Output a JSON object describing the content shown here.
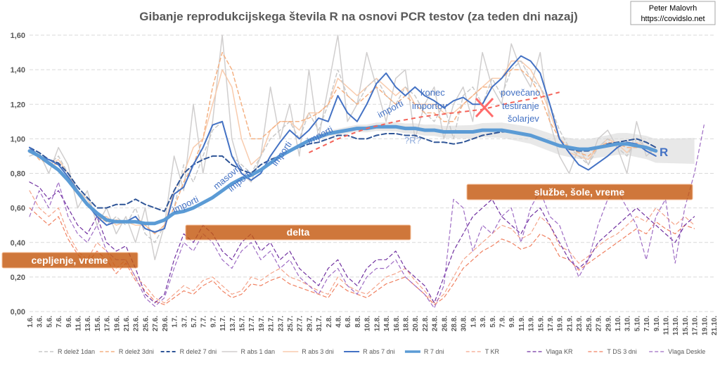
{
  "credit": {
    "line1": "Peter Malovrh",
    "line2": "https://covidslo.net"
  },
  "chart_data": {
    "type": "line",
    "title": "Gibanje reprodukcijskega števila R na osnovi PCR testov (za teden dni nazaj)",
    "ylim": [
      0.0,
      1.6
    ],
    "yticks": [
      "0,00",
      "0,20",
      "0,40",
      "0,60",
      "0,80",
      "1,00",
      "1,20",
      "1,40",
      "1,60"
    ],
    "ytick_values": [
      0.0,
      0.2,
      0.4,
      0.6,
      0.8,
      1.0,
      1.2,
      1.4,
      1.6
    ],
    "grid": true,
    "legend_position": "bottom",
    "categories": [
      "1.6.",
      "3.6.",
      "5.6.",
      "7.6.",
      "9.6.",
      "11.6.",
      "13.6.",
      "15.6.",
      "17.6.",
      "19.6.",
      "21.6.",
      "23.6.",
      "25.6.",
      "27.6.",
      "29.6.",
      "1.7.",
      "3.7.",
      "5.7.",
      "7.7.",
      "9.7.",
      "11.7.",
      "13.7.",
      "15.7.",
      "17.7.",
      "19.7.",
      "21.7.",
      "23.7.",
      "25.7.",
      "27.7.",
      "29.7.",
      "31.7.",
      "2.8.",
      "4.8.",
      "6.8.",
      "8.8.",
      "10.8.",
      "12.8.",
      "14.8.",
      "16.8.",
      "18.8.",
      "20.8.",
      "22.8.",
      "24.8.",
      "26.8.",
      "28.8.",
      "30.8.",
      "1.9.",
      "3.9.",
      "5.9.",
      "7.9.",
      "9.9.",
      "11.9.",
      "13.9.",
      "15.9.",
      "17.9.",
      "19.9.",
      "21.9.",
      "23.9.",
      "25.9.",
      "27.9.",
      "29.9.",
      "1.10.",
      "3.10.",
      "5.10.",
      "7.10.",
      "9.10.",
      "11.10.",
      "13.10.",
      "15.10.",
      "17.10.",
      "19.10.",
      "21.10."
    ],
    "series": [
      {
        "name": "R delež 1dan",
        "color": "#c9c9c9",
        "style": "dash",
        "width": 1.5,
        "values": [
          0.95,
          0.9,
          0.85,
          0.9,
          0.8,
          0.7,
          0.65,
          0.55,
          0.5,
          0.55,
          0.5,
          0.6,
          0.45,
          0.4,
          0.5,
          0.6,
          0.85,
          0.75,
          0.9,
          1.05,
          1.1,
          0.9,
          0.85,
          0.8,
          0.9,
          1.0,
          1.05,
          1.1,
          1.0,
          1.15,
          1.05,
          1.2,
          1.4,
          1.25,
          1.2,
          1.3,
          1.35,
          1.25,
          1.2,
          1.3,
          1.25,
          1.15,
          1.1,
          1.2,
          1.0,
          1.25,
          1.3,
          1.2,
          1.35,
          1.25,
          1.4,
          1.45,
          1.35,
          1.3,
          1.2,
          1.05,
          0.95,
          0.9,
          0.85,
          0.95,
          1.0,
          0.95,
          0.9,
          1.0,
          0.95,
          0.9,
          null,
          null,
          null,
          null,
          null,
          null
        ]
      },
      {
        "name": "R delež 3dni",
        "color": "#f4b183",
        "style": "dash",
        "width": 1.5,
        "values": [
          0.95,
          0.88,
          0.86,
          0.85,
          0.78,
          0.7,
          0.62,
          0.55,
          0.52,
          0.53,
          0.52,
          0.55,
          0.5,
          0.45,
          0.5,
          0.6,
          0.75,
          0.85,
          1.0,
          1.3,
          1.5,
          1.4,
          1.2,
          1.0,
          1.0,
          1.05,
          1.1,
          1.1,
          1.1,
          1.12,
          1.15,
          1.2,
          1.3,
          1.25,
          1.2,
          1.25,
          1.3,
          1.25,
          1.2,
          1.25,
          1.2,
          1.15,
          1.15,
          1.1,
          1.1,
          1.2,
          1.25,
          1.3,
          1.3,
          1.35,
          1.4,
          1.4,
          1.35,
          1.25,
          1.1,
          1.0,
          0.95,
          0.92,
          0.9,
          0.95,
          0.98,
          0.97,
          0.95,
          0.95,
          0.95,
          0.93,
          null,
          null,
          null,
          null,
          null,
          null
        ]
      },
      {
        "name": "R delež 7 dni",
        "color": "#2f5597",
        "style": "dash",
        "width": 2,
        "values": [
          0.95,
          0.92,
          0.88,
          0.86,
          0.8,
          0.72,
          0.66,
          0.6,
          0.6,
          0.62,
          0.62,
          0.65,
          0.62,
          0.6,
          0.58,
          0.7,
          0.8,
          0.85,
          0.88,
          0.9,
          0.9,
          0.85,
          0.82,
          0.8,
          0.85,
          0.88,
          0.9,
          0.93,
          0.95,
          0.97,
          0.98,
          1.0,
          1.02,
          1.02,
          1.0,
          1.0,
          1.02,
          1.03,
          1.03,
          1.02,
          1.02,
          1.0,
          0.98,
          0.98,
          0.97,
          0.98,
          1.0,
          1.02,
          1.03,
          1.04,
          1.04,
          1.03,
          1.02,
          1.0,
          0.98,
          0.96,
          0.94,
          0.93,
          0.93,
          0.95,
          0.97,
          0.98,
          0.99,
          1.0,
          0.98,
          0.95,
          null,
          null,
          null,
          null,
          null,
          null
        ]
      },
      {
        "name": "R abs 1 dan",
        "color": "#d0cece",
        "style": "solid",
        "width": 1.5,
        "values": [
          0.9,
          0.92,
          0.8,
          0.95,
          0.85,
          0.6,
          0.7,
          0.5,
          0.6,
          0.45,
          0.55,
          0.4,
          0.6,
          0.3,
          0.5,
          0.9,
          0.7,
          1.2,
          0.8,
          1.1,
          1.6,
          1.0,
          0.8,
          0.75,
          0.9,
          1.3,
          1.0,
          1.2,
          0.9,
          1.4,
          1.0,
          1.3,
          1.6,
          1.1,
          1.2,
          1.5,
          1.3,
          1.1,
          1.35,
          1.4,
          1.0,
          1.2,
          1.3,
          1.0,
          1.2,
          1.3,
          1.1,
          1.5,
          1.3,
          1.2,
          1.55,
          1.4,
          1.3,
          1.5,
          1.1,
          0.9,
          0.8,
          0.95,
          0.85,
          1.0,
          1.05,
          0.95,
          0.8,
          1.1,
          0.9,
          0.95,
          null,
          null,
          null,
          null,
          null,
          null
        ]
      },
      {
        "name": "R abs 3 dni",
        "color": "#f8cbad",
        "style": "solid",
        "width": 1.5,
        "values": [
          0.92,
          0.9,
          0.85,
          0.88,
          0.8,
          0.7,
          0.65,
          0.55,
          0.55,
          0.5,
          0.52,
          0.5,
          0.5,
          0.45,
          0.5,
          0.7,
          0.8,
          0.95,
          1.0,
          1.2,
          1.4,
          1.3,
          1.0,
          0.85,
          0.9,
          1.05,
          1.1,
          1.1,
          1.05,
          1.15,
          1.15,
          1.2,
          1.35,
          1.3,
          1.25,
          1.3,
          1.35,
          1.3,
          1.25,
          1.3,
          1.2,
          1.2,
          1.2,
          1.15,
          1.15,
          1.2,
          1.25,
          1.3,
          1.35,
          1.35,
          1.45,
          1.45,
          1.4,
          1.3,
          1.15,
          1.0,
          0.92,
          0.9,
          0.88,
          0.95,
          1.0,
          0.97,
          0.92,
          0.98,
          0.95,
          0.93,
          null,
          null,
          null,
          null,
          null,
          null
        ]
      },
      {
        "name": "R abs 7 dni",
        "color": "#4472c4",
        "style": "solid",
        "width": 2,
        "values": [
          0.95,
          0.9,
          0.88,
          0.85,
          0.78,
          0.7,
          0.62,
          0.55,
          0.5,
          0.52,
          0.52,
          0.55,
          0.48,
          0.46,
          0.48,
          0.68,
          0.72,
          0.85,
          0.95,
          1.08,
          1.1,
          0.9,
          0.8,
          0.76,
          0.8,
          0.9,
          0.98,
          1.05,
          1.0,
          1.05,
          1.12,
          1.1,
          1.25,
          1.15,
          1.1,
          1.2,
          1.32,
          1.38,
          1.3,
          1.25,
          1.3,
          1.25,
          1.22,
          1.18,
          1.22,
          1.24,
          1.2,
          1.2,
          1.3,
          1.35,
          1.42,
          1.48,
          1.45,
          1.38,
          1.2,
          1.0,
          0.92,
          0.85,
          0.82,
          0.86,
          0.9,
          0.95,
          0.98,
          0.97,
          0.93,
          0.9,
          null,
          null,
          null,
          null,
          null,
          null
        ]
      },
      {
        "name": "R 7 dni",
        "color": "#5b9bd5",
        "style": "solid",
        "width": 5,
        "values": [
          0.93,
          0.9,
          0.86,
          0.82,
          0.76,
          0.69,
          0.62,
          0.57,
          0.53,
          0.52,
          0.52,
          0.52,
          0.51,
          0.51,
          0.53,
          0.57,
          0.58,
          0.6,
          0.63,
          0.66,
          0.7,
          0.74,
          0.77,
          0.79,
          0.82,
          0.86,
          0.9,
          0.93,
          0.96,
          0.99,
          1.01,
          1.03,
          1.04,
          1.05,
          1.06,
          1.06,
          1.07,
          1.07,
          1.07,
          1.06,
          1.06,
          1.05,
          1.05,
          1.04,
          1.04,
          1.04,
          1.04,
          1.05,
          1.05,
          1.05,
          1.04,
          1.03,
          1.02,
          1.0,
          0.98,
          0.96,
          0.95,
          0.94,
          0.94,
          0.95,
          0.96,
          0.97,
          0.97,
          0.96,
          0.95,
          0.93,
          null,
          null,
          null,
          null,
          null,
          null
        ]
      },
      {
        "name": "T KR",
        "color": "#f4a48a",
        "style": "dash",
        "width": 1.2,
        "values": [
          0.7,
          0.6,
          0.55,
          0.6,
          0.45,
          0.35,
          0.3,
          0.4,
          0.35,
          0.25,
          0.3,
          0.2,
          0.15,
          0.08,
          0.05,
          0.1,
          0.15,
          0.12,
          0.18,
          0.2,
          0.15,
          0.1,
          0.12,
          0.2,
          0.18,
          0.22,
          0.25,
          0.2,
          0.18,
          0.15,
          0.12,
          0.1,
          0.2,
          0.15,
          0.12,
          0.1,
          0.15,
          0.2,
          0.22,
          0.25,
          0.18,
          0.12,
          0.05,
          0.1,
          0.2,
          0.3,
          0.35,
          0.4,
          0.45,
          0.5,
          0.48,
          0.42,
          0.45,
          0.55,
          0.5,
          0.38,
          0.35,
          0.28,
          0.32,
          0.38,
          0.42,
          0.45,
          0.5,
          0.55,
          0.52,
          0.6,
          0.55,
          0.5,
          0.55,
          0.5,
          null,
          null
        ]
      },
      {
        "name": "Vlaga KR",
        "color": "#7030a0",
        "style": "dash",
        "width": 1.2,
        "values": [
          0.75,
          0.72,
          0.65,
          0.7,
          0.6,
          0.5,
          0.45,
          0.55,
          0.4,
          0.35,
          0.38,
          0.25,
          0.1,
          0.05,
          0.1,
          0.3,
          0.45,
          0.4,
          0.5,
          0.45,
          0.35,
          0.3,
          0.4,
          0.45,
          0.35,
          0.4,
          0.3,
          0.35,
          0.25,
          0.2,
          0.15,
          0.25,
          0.3,
          0.2,
          0.15,
          0.25,
          0.3,
          0.3,
          0.35,
          0.25,
          0.2,
          0.15,
          0.05,
          0.2,
          0.35,
          0.45,
          0.55,
          0.6,
          0.65,
          0.55,
          0.5,
          0.45,
          0.55,
          0.6,
          0.5,
          0.4,
          0.3,
          0.25,
          0.3,
          0.4,
          0.45,
          0.5,
          0.55,
          0.6,
          0.55,
          0.5,
          0.45,
          0.4,
          0.5,
          0.55,
          null,
          null
        ]
      },
      {
        "name": "T DS 3 dni",
        "color": "#f08060",
        "style": "dash",
        "width": 1.2,
        "values": [
          0.6,
          0.55,
          0.5,
          0.55,
          0.42,
          0.33,
          0.28,
          0.35,
          0.3,
          0.22,
          0.28,
          0.18,
          0.12,
          0.06,
          0.04,
          0.08,
          0.12,
          0.1,
          0.15,
          0.18,
          0.12,
          0.08,
          0.1,
          0.16,
          0.15,
          0.18,
          0.2,
          0.16,
          0.14,
          0.12,
          0.1,
          0.08,
          0.16,
          0.12,
          0.1,
          0.08,
          0.12,
          0.16,
          0.18,
          0.2,
          0.15,
          0.1,
          0.04,
          0.08,
          0.16,
          0.25,
          0.3,
          0.35,
          0.38,
          0.42,
          0.4,
          0.36,
          0.38,
          0.45,
          0.42,
          0.32,
          0.3,
          0.24,
          0.28,
          0.32,
          0.36,
          0.4,
          0.44,
          0.48,
          0.45,
          0.52,
          0.48,
          0.45,
          0.5,
          0.48,
          null,
          null
        ]
      },
      {
        "name": "Vlaga Deskle",
        "color": "#9e6cc4",
        "style": "dash",
        "width": 1.2,
        "values": [
          0.55,
          0.7,
          0.6,
          0.75,
          0.55,
          0.45,
          0.4,
          0.5,
          0.35,
          0.3,
          0.3,
          0.2,
          0.08,
          0.03,
          0.08,
          0.25,
          0.4,
          0.35,
          0.45,
          0.4,
          0.3,
          0.25,
          0.35,
          0.4,
          0.3,
          0.35,
          0.25,
          0.3,
          0.2,
          0.15,
          0.1,
          0.2,
          0.25,
          0.15,
          0.1,
          0.2,
          0.25,
          0.25,
          0.3,
          0.2,
          0.15,
          0.1,
          0.02,
          0.15,
          0.65,
          0.6,
          0.35,
          0.5,
          0.45,
          0.55,
          0.6,
          0.4,
          0.6,
          0.7,
          0.55,
          0.5,
          0.35,
          0.2,
          0.3,
          0.5,
          0.65,
          0.7,
          0.6,
          0.5,
          0.3,
          0.55,
          0.65,
          0.28,
          0.6,
          0.8,
          1.08,
          null
        ]
      }
    ],
    "annotations": {
      "masovni_importi": "masovni importi",
      "importi_1": "importi",
      "importi_2": "importi",
      "importi_3": "importi",
      "importi_4": "importi",
      "konec_importov": "konec importov",
      "povecano_testiranje": "povečano testiranje šolarjev",
      "q_r": "?R?",
      "r_label": "R",
      "delta": "delta",
      "cepljenje": "cepljenje, vreme",
      "sluzbe": "službe, šole, vreme"
    }
  }
}
